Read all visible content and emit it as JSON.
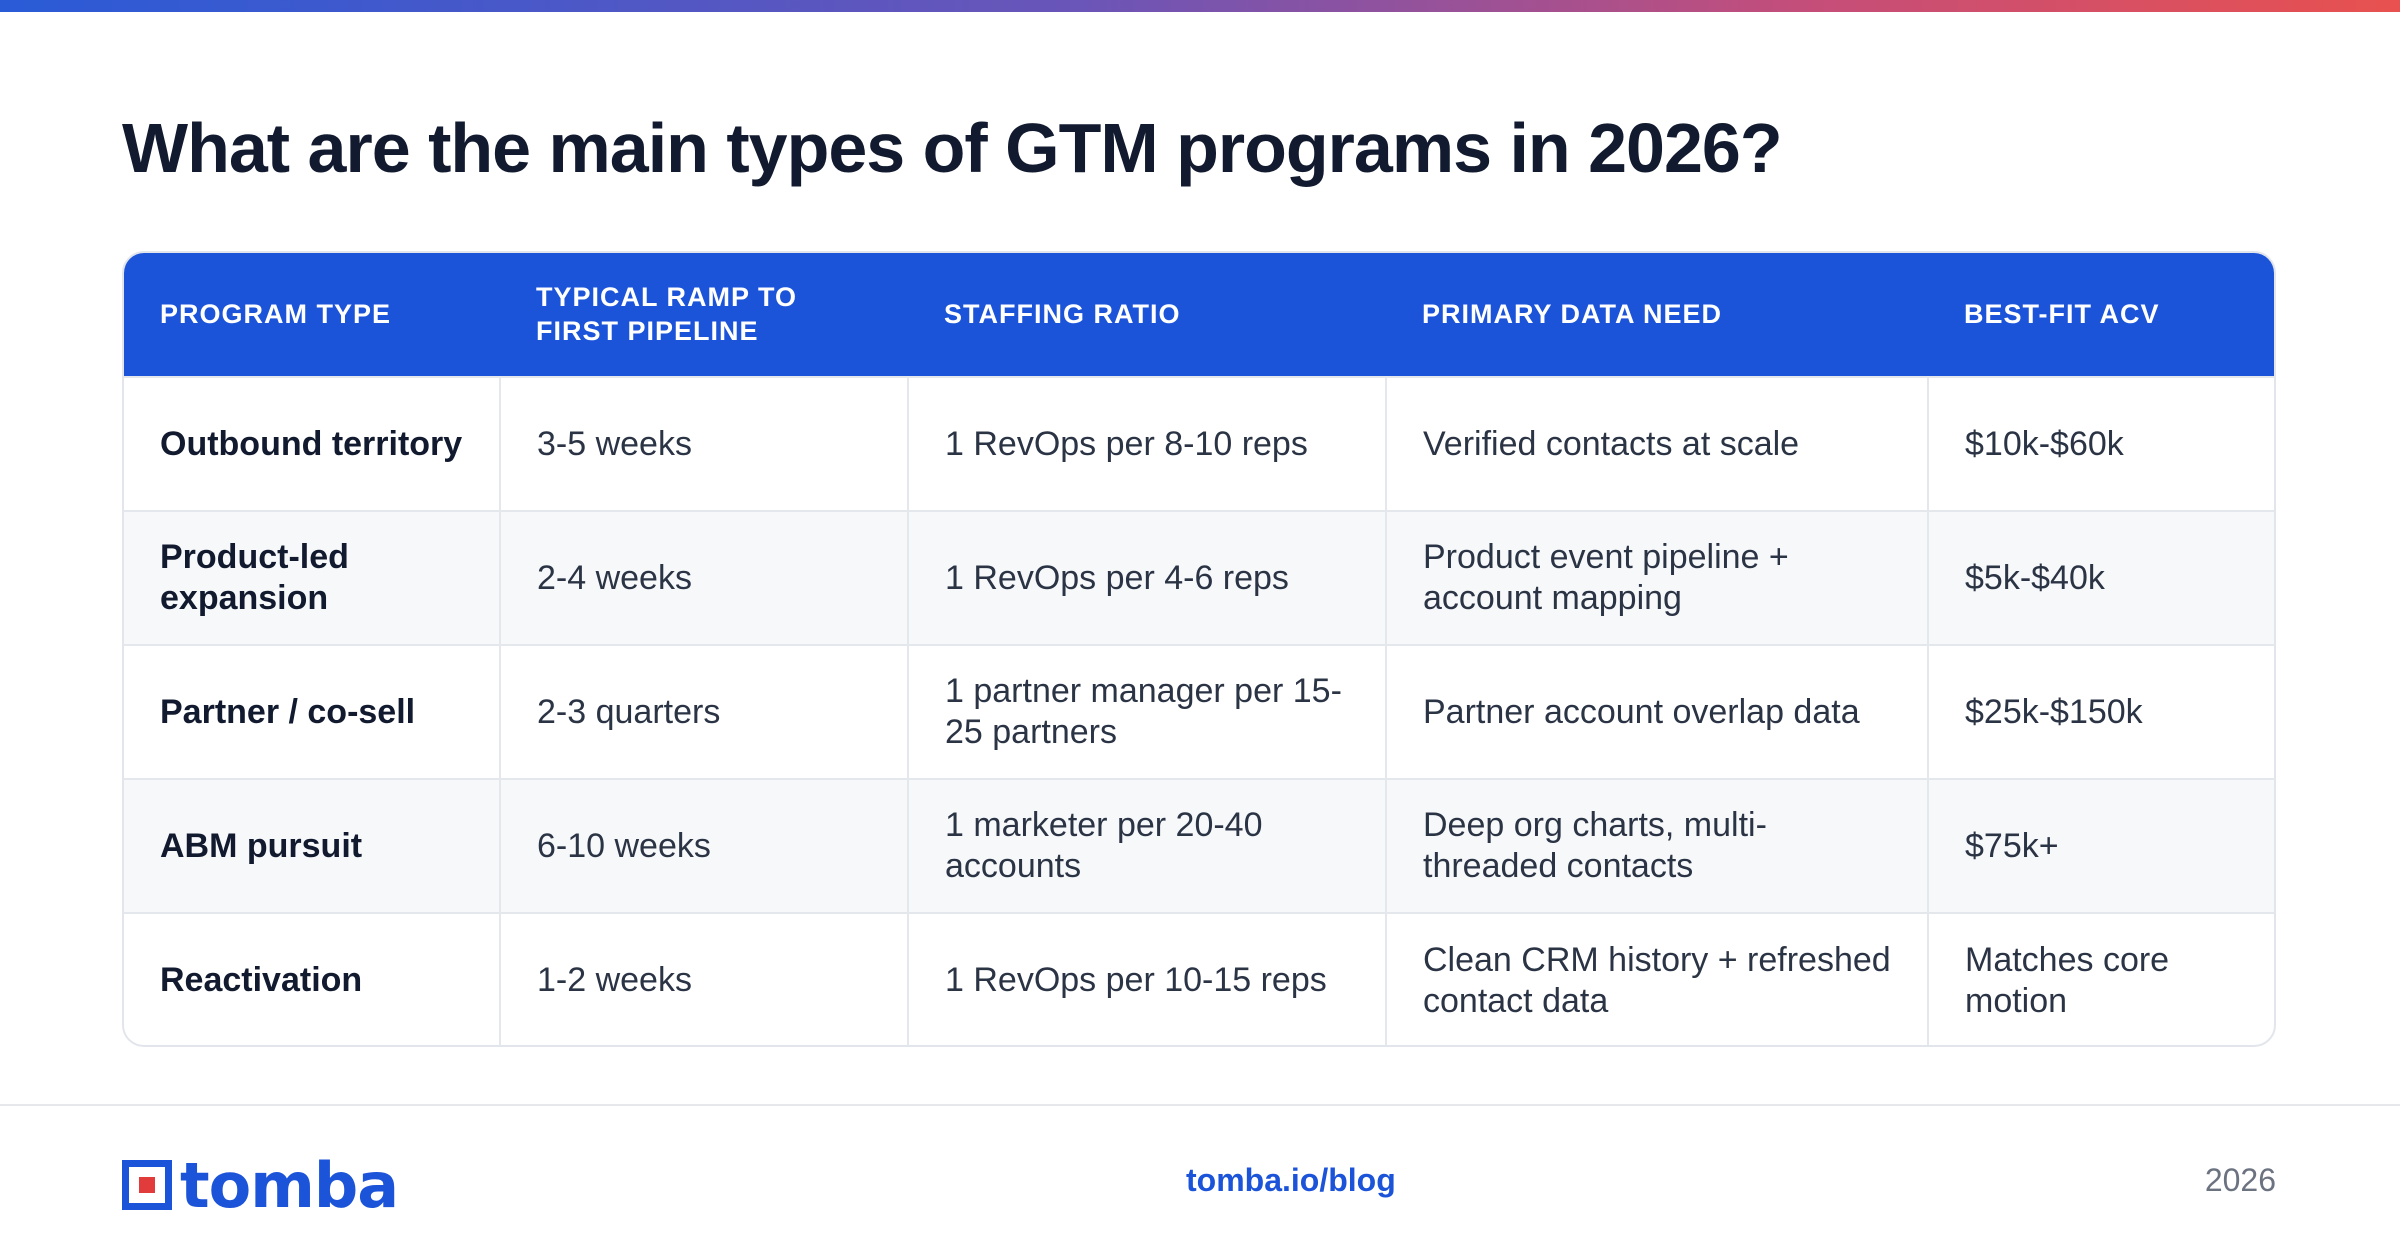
{
  "title": "What are the main types of GTM programs in 2026?",
  "table": {
    "headers": [
      "PROGRAM TYPE",
      "TYPICAL RAMP TO FIRST PIPELINE",
      "STAFFING RATIO",
      "PRIMARY DATA NEED",
      "BEST-FIT ACV"
    ],
    "rows": [
      [
        "Outbound territory",
        "3-5 weeks",
        "1 RevOps per 8-10 reps",
        "Verified contacts at scale",
        "$10k-$60k"
      ],
      [
        "Product-led expansion",
        "2-4 weeks",
        "1 RevOps per 4-6 reps",
        "Product event pipeline + account mapping",
        "$5k-$40k"
      ],
      [
        "Partner / co-sell",
        "2-3 quarters",
        "1 partner manager per 15-25 partners",
        "Partner account overlap data",
        "$25k-$150k"
      ],
      [
        "ABM pursuit",
        "6-10 weeks",
        "1 marketer per 20-40 accounts",
        "Deep org charts, multi-threaded contacts",
        "$75k+"
      ],
      [
        "Reactivation",
        "1-2 weeks",
        "1 RevOps per 10-15 reps",
        "Clean CRM history + refreshed contact data",
        "Matches core motion"
      ]
    ]
  },
  "footer": {
    "logo_text": "tomba",
    "link": "tomba.io/blog",
    "year": "2026"
  },
  "colors": {
    "accent": "#1b53d9",
    "logo_red": "#e23b3b"
  }
}
